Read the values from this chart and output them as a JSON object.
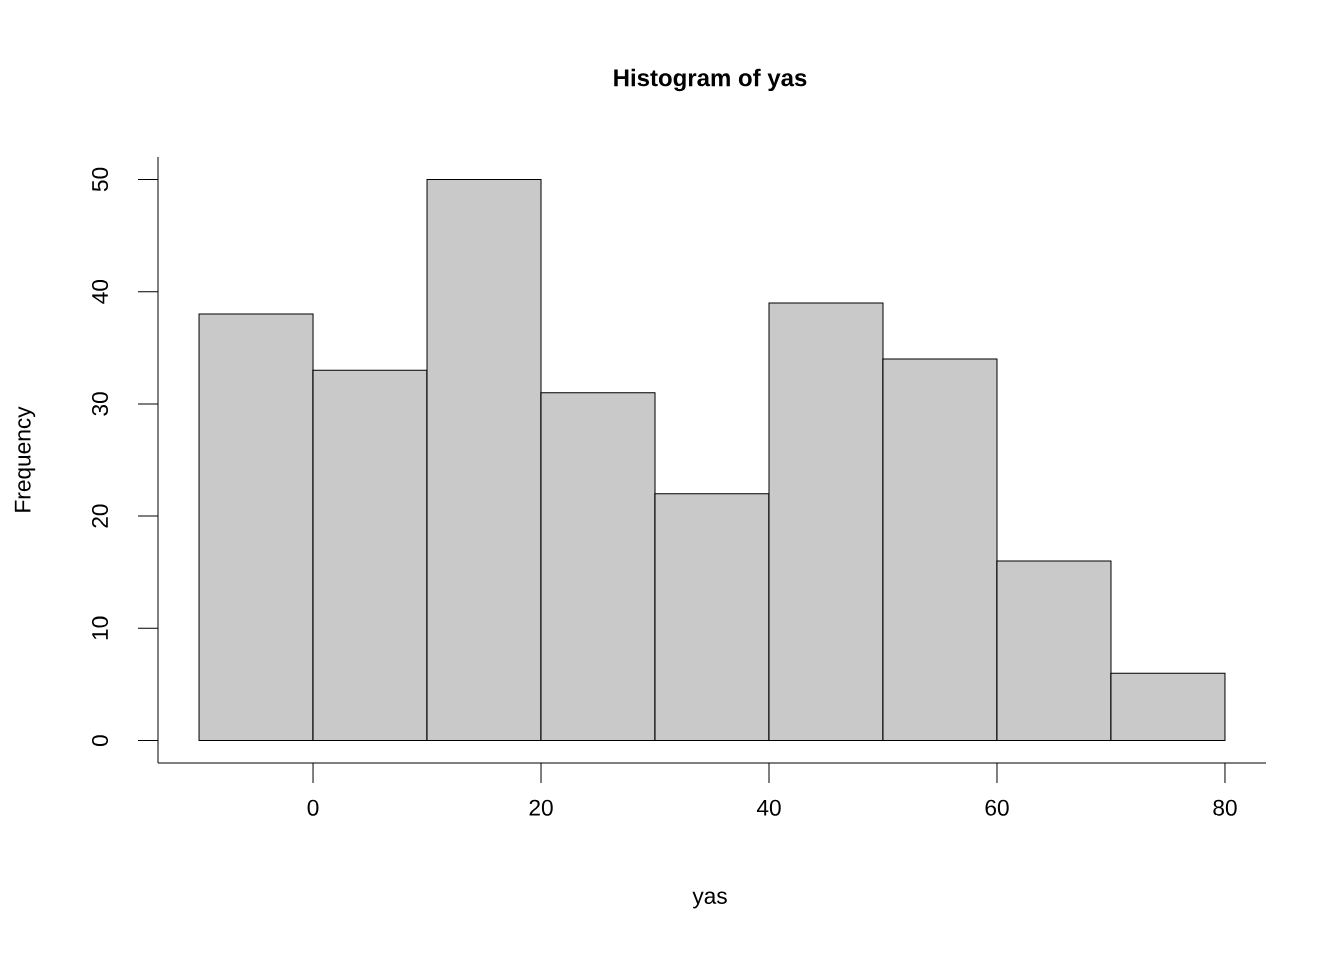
{
  "chart_data": {
    "type": "histogram",
    "title": "Histogram of yas",
    "xlabel": "yas",
    "ylabel": "Frequency",
    "bins": [
      -10,
      0,
      10,
      20,
      30,
      40,
      50,
      60,
      70,
      80
    ],
    "values": [
      38,
      33,
      50,
      31,
      22,
      39,
      34,
      16,
      6
    ],
    "color": "#c9c9c9",
    "xlim": [
      -13.6,
      83.6
    ],
    "ylim": [
      -2,
      52
    ],
    "xticks": [
      0,
      20,
      40,
      60,
      80
    ],
    "yticks": [
      0,
      10,
      20,
      30,
      40,
      50
    ]
  }
}
